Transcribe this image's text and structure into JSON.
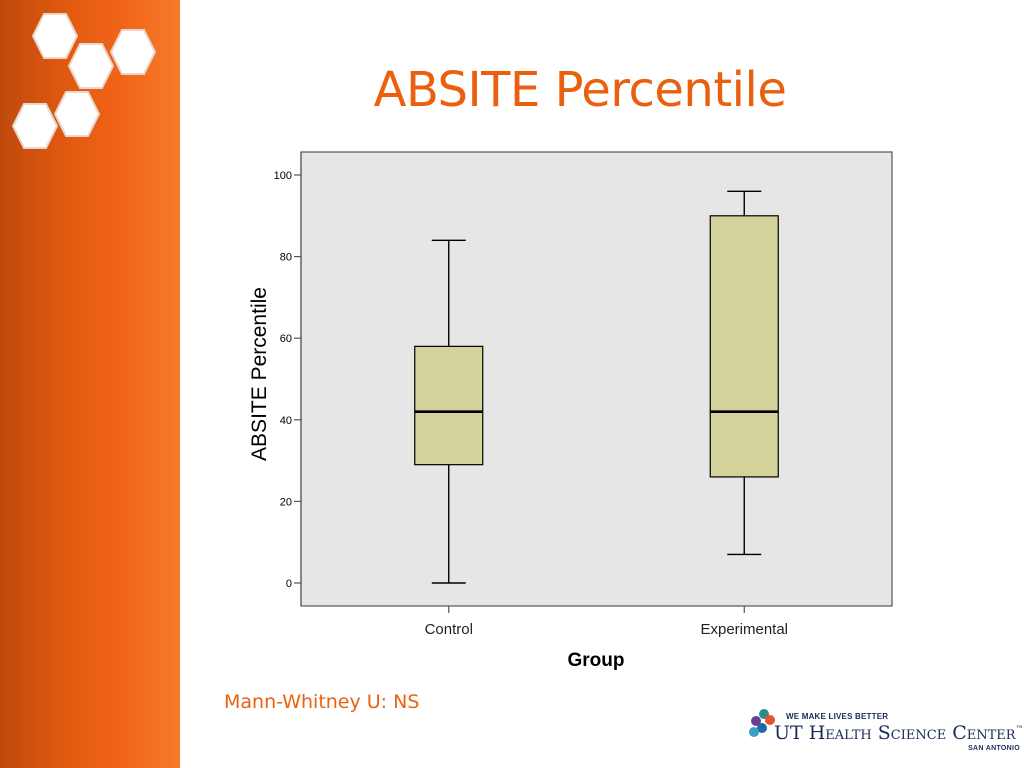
{
  "slide": {
    "title": "ABSITE Percentile",
    "footnote": "Mann-Whitney U: NS"
  },
  "brand": {
    "tagline": "WE MAKE LIVES BETTER",
    "name": "UT Health Science Center",
    "trademark": "™",
    "location": "SAN ANTONIO",
    "dot_colors": [
      "#2e8b8b",
      "#6a3d8f",
      "#e8542a",
      "#1f6aa5",
      "#3aa0c8"
    ]
  },
  "colors": {
    "accent": "#ea600f",
    "sidebar": "#e0580f",
    "plot_background": "#e6e6e6",
    "box_fill": "#d2d29a"
  },
  "icons": [
    "hexagon-logo-icon",
    "brand-dots-icon"
  ],
  "chart_data": {
    "type": "box",
    "title": "",
    "xlabel": "Group",
    "ylabel": "ABSITE Percentile",
    "ylim": [
      0,
      100
    ],
    "yticks": [
      0,
      20,
      40,
      60,
      80,
      100
    ],
    "grid": false,
    "categories": [
      "Control",
      "Experimental"
    ],
    "boxes": [
      {
        "category": "Control",
        "min": 0,
        "q1": 29,
        "median": 42,
        "q3": 58,
        "max": 84
      },
      {
        "category": "Experimental",
        "min": 7,
        "q1": 26,
        "median": 42,
        "q3": 90,
        "max": 96
      }
    ]
  }
}
